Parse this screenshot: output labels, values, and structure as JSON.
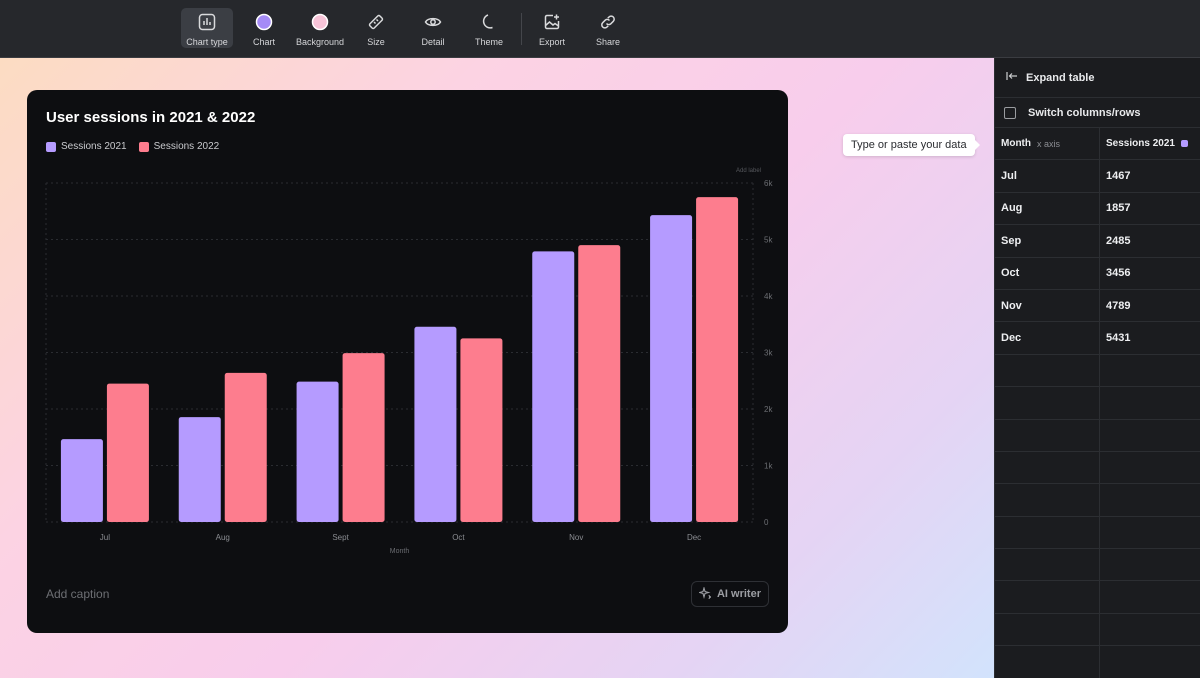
{
  "toolbar": {
    "items": [
      {
        "label": "Chart type",
        "icon": "bar-chart-icon"
      },
      {
        "label": "Chart",
        "icon": "purple-circle-icon"
      },
      {
        "label": "Background",
        "icon": "pink-circle-icon"
      },
      {
        "label": "Size",
        "icon": "ruler-icon"
      },
      {
        "label": "Detail",
        "icon": "eye-icon"
      },
      {
        "label": "Theme",
        "icon": "moon-icon"
      },
      {
        "label": "Export",
        "icon": "image-export-icon"
      },
      {
        "label": "Share",
        "icon": "link-icon"
      }
    ],
    "chart_swatch_color": "#a58bf6",
    "background_swatch_color": "#f7c4d8"
  },
  "card": {
    "title": "User sessions in 2021 & 2022",
    "add_label": "Add label",
    "caption_placeholder": "Add caption",
    "ai_writer_label": "AI writer"
  },
  "tooltip": "Type or paste your data",
  "panel": {
    "expand_label": "Expand table",
    "switch_label": "Switch columns/rows",
    "header": {
      "col1": "Month",
      "col1_sub": "x axis",
      "col2": "Sessions 2021"
    },
    "rows": [
      {
        "month": "Jul",
        "value": "1467"
      },
      {
        "month": "Aug",
        "value": "1857"
      },
      {
        "month": "Sep",
        "value": "2485"
      },
      {
        "month": "Oct",
        "value": "3456"
      },
      {
        "month": "Nov",
        "value": "4789"
      },
      {
        "month": "Dec",
        "value": "5431"
      }
    ]
  },
  "chart_data": {
    "type": "bar",
    "title": "User sessions in 2021 & 2022",
    "categories": [
      "Jul",
      "Aug",
      "Sept",
      "Oct",
      "Nov",
      "Dec"
    ],
    "series": [
      {
        "name": "Sessions 2021",
        "color": "#b59bff",
        "values": [
          1467,
          1857,
          2485,
          3456,
          4789,
          5431
        ]
      },
      {
        "name": "Sessions 2022",
        "color": "#fd7d8e",
        "values": [
          2450,
          2640,
          2990,
          3250,
          4900,
          5750
        ]
      }
    ],
    "xlabel": "Month",
    "ylabel": "",
    "ylim": [
      0,
      6000
    ],
    "yticks": [
      "0",
      "1k",
      "2k",
      "3k",
      "4k",
      "5k",
      "6k"
    ],
    "grid": true,
    "legend": "top-left"
  }
}
